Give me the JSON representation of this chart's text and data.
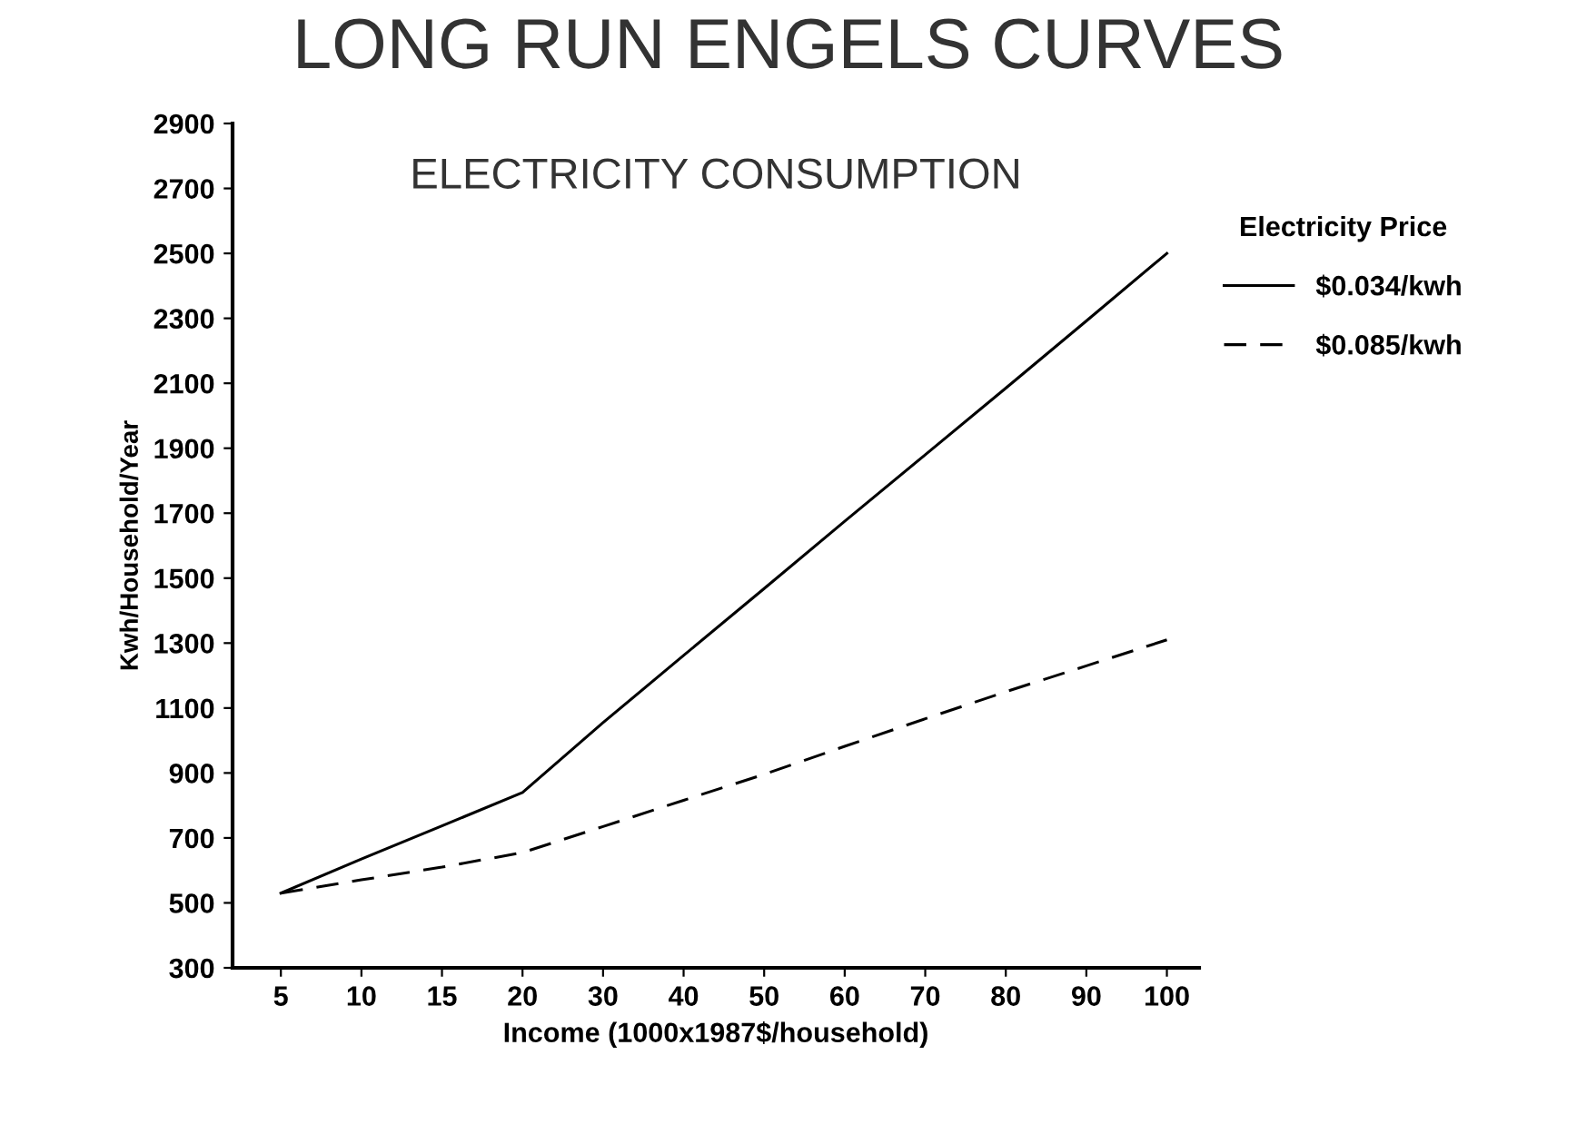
{
  "chart_data": {
    "type": "line",
    "title": "LONG RUN ENGELS CURVES",
    "subtitle": "ELECTRICITY CONSUMPTION",
    "xlabel": "Income (1000x1987$/household)",
    "ylabel": "Kwh/Household/Year",
    "legend_title": "Electricity Price",
    "categories": [
      "5",
      "10",
      "15",
      "20",
      "30",
      "40",
      "50",
      "60",
      "70",
      "80",
      "90",
      "100"
    ],
    "series": [
      {
        "name": "$0.034/kwh",
        "color": "#000000",
        "line_style": "solid",
        "values": [
          530,
          635,
          737,
          840,
          1055,
          1262,
          1468,
          1675,
          1880,
          2085,
          2292,
          2500
        ]
      },
      {
        "name": "$0.085/kwh",
        "color": "#000000",
        "line_style": "dashed",
        "values": [
          530,
          571,
          610,
          655,
          735,
          816,
          896,
          982,
          1067,
          1150,
          1230,
          1310
        ]
      }
    ],
    "ylim": [
      300,
      2900
    ],
    "yticks": [
      300,
      500,
      700,
      900,
      1100,
      1300,
      1500,
      1700,
      1900,
      2100,
      2300,
      2500,
      2700,
      2900
    ],
    "grid": false,
    "legend": "right",
    "marker": "none"
  }
}
